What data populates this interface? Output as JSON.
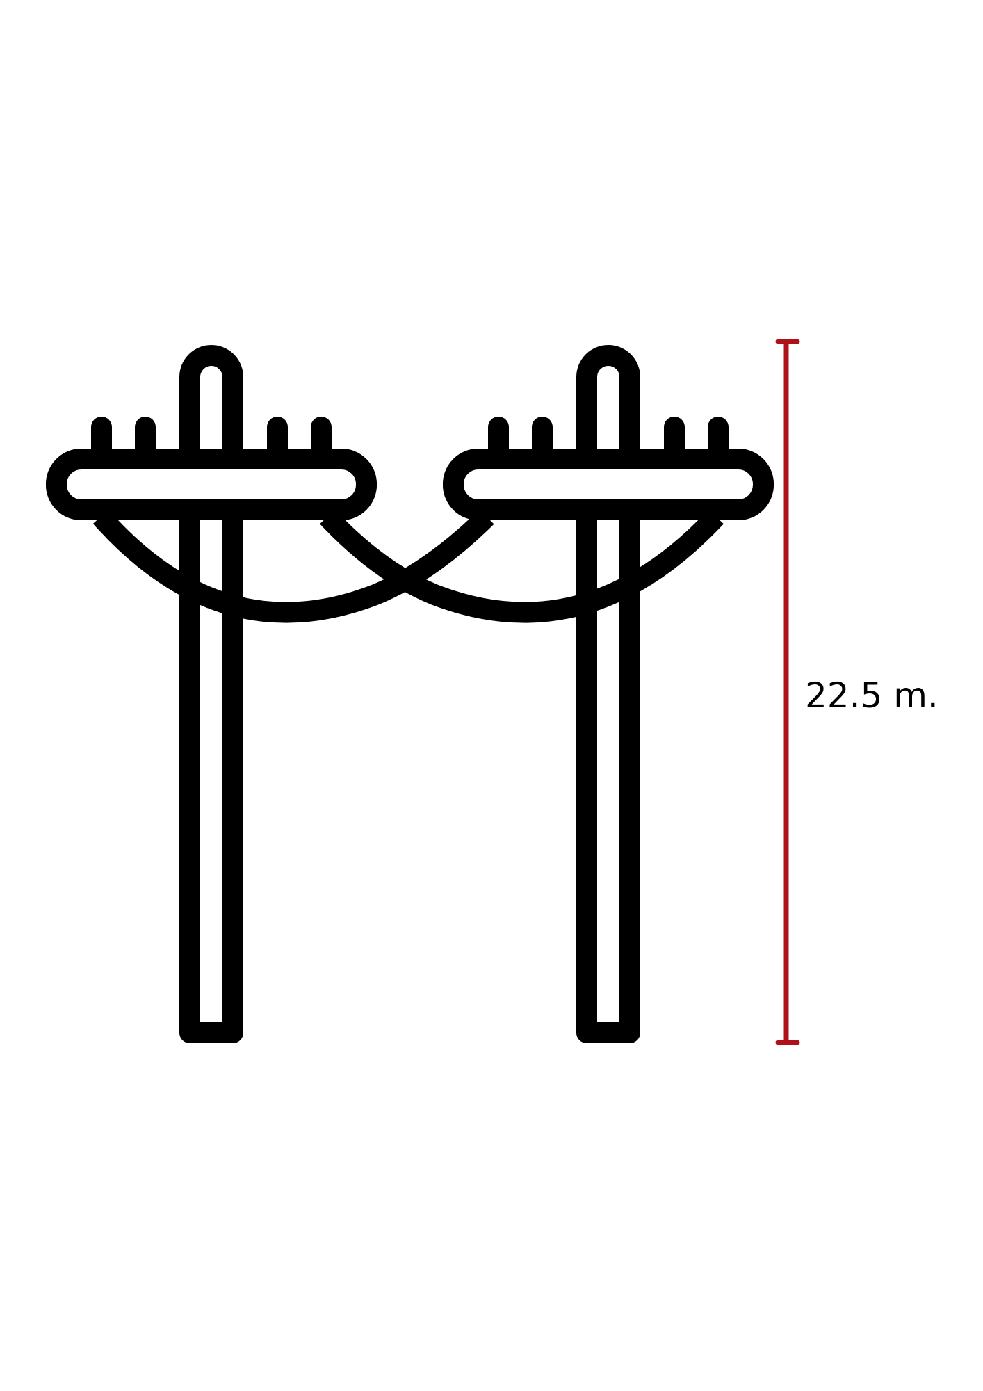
{
  "diagram": {
    "measurement_label": "22.5 m.",
    "colors": {
      "line": "#000000",
      "background": "#ffffff",
      "dimension": "#b0101a"
    }
  }
}
